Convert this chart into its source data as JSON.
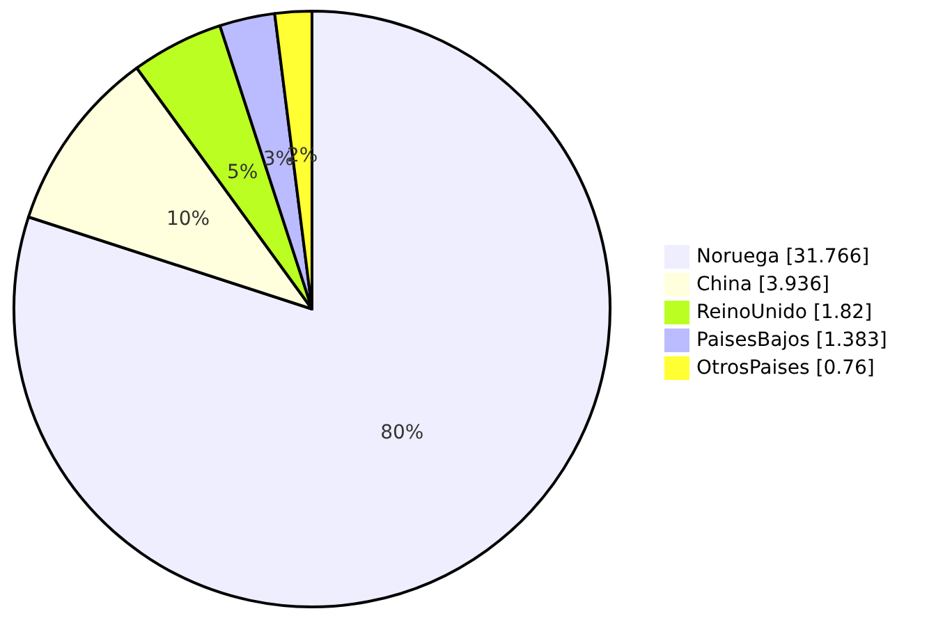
{
  "chart_data": {
    "type": "pie",
    "categories": [
      "Noruega [31.766]",
      "China [3.936]",
      "ReinoUnido [1.82]",
      "PaisesBajos [1.383]",
      "OtrosPaises [0.76]"
    ],
    "values": [
      80,
      10,
      5,
      3,
      2
    ],
    "colors": [
      "#eeeeff",
      "#ffffdd",
      "#bbff22",
      "#bbbbff",
      "#ffff33"
    ],
    "value_labels": [
      "80%",
      "10%",
      "5%",
      "3%",
      "2%"
    ],
    "legend": "right"
  }
}
